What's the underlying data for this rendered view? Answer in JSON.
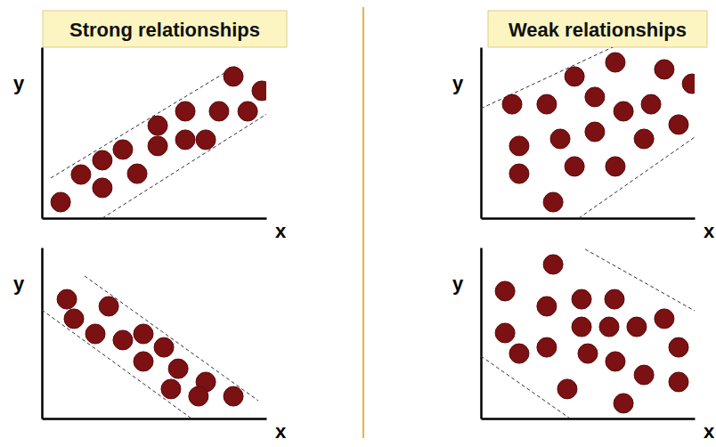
{
  "slide": {
    "headings": [
      "Strong relationships",
      "Weak relationships"
    ]
  },
  "chart_data": [
    {
      "type": "scatter",
      "x_label": "x",
      "y_label": "y",
      "xlim": [
        0,
        10.5
      ],
      "ylim": [
        0,
        8
      ],
      "tick_labels": false,
      "color": "#7b1113",
      "marker": "circle",
      "x": [
        0.88,
        1.83,
        2.83,
        2.83,
        3.79,
        4.46,
        5.42,
        5.42,
        6.71,
        6.71,
        7.67,
        8.29,
        8.96,
        9.63,
        10.29
      ],
      "y": [
        0.75,
        2.04,
        2.71,
        1.42,
        3.21,
        2.08,
        4.33,
        3.38,
        5.0,
        3.67,
        3.67,
        5.0,
        6.63,
        5.0,
        5.96
      ],
      "band_lines": [
        {
          "x": [
            0.42,
            9.17
          ],
          "y": [
            1.88,
            7.17
          ]
        },
        {
          "x": [
            2.83,
            10.5
          ],
          "y": [
            0,
            4.86
          ]
        }
      ]
    },
    {
      "type": "scatter",
      "x_label": "x",
      "y_label": "y",
      "xlim": [
        0,
        10.5
      ],
      "ylim": [
        0,
        8
      ],
      "tick_labels": false,
      "color": "#7b1113",
      "marker": "circle",
      "x": [
        1.17,
        1.5,
        3.13,
        2.5,
        3.79,
        4.75,
        4.75,
        5.71,
        6.38,
        6.04,
        7.67,
        7.33,
        8.96
      ],
      "y": [
        5.58,
        4.67,
        5.25,
        3.96,
        3.67,
        3.96,
        2.67,
        3.33,
        2.33,
        1.38,
        1.71,
        1.04,
        1.04
      ],
      "band_lines": [
        {
          "x": [
            2.0,
            10.13
          ],
          "y": [
            6.67,
            0.83
          ]
        },
        {
          "x": [
            0,
            7.0
          ],
          "y": [
            5.08,
            0
          ]
        }
      ]
    },
    {
      "type": "scatter",
      "x_label": "x",
      "y_label": "y",
      "xlim": [
        0,
        10
      ],
      "ylim": [
        0,
        8
      ],
      "tick_labels": false,
      "color": "#7b1113",
      "marker": "circle",
      "x": [
        1.46,
        3.08,
        4.38,
        6.29,
        5.33,
        6.67,
        7.96,
        8.58,
        9.88,
        1.79,
        3.71,
        5.33,
        7.63,
        9.25,
        1.79,
        4.38,
        6.29,
        3.38
      ],
      "y": [
        5.33,
        5.33,
        6.63,
        7.29,
        5.67,
        5.0,
        5.33,
        6.96,
        6.29,
        3.38,
        3.71,
        4.04,
        3.71,
        4.38,
        2.08,
        2.42,
        2.42,
        0.75
      ],
      "band_lines": [
        {
          "x": [
            0,
            6.25
          ],
          "y": [
            5.13,
            8.04
          ]
        },
        {
          "x": [
            4.58,
            10
          ],
          "y": [
            0,
            3.79
          ]
        }
      ]
    },
    {
      "type": "scatter",
      "x_label": "x",
      "y_label": "y",
      "xlim": [
        0,
        10
      ],
      "ylim": [
        0,
        8
      ],
      "tick_labels": false,
      "color": "#7b1113",
      "marker": "circle",
      "x": [
        1.13,
        3.38,
        1.13,
        1.79,
        3.08,
        4.71,
        3.08,
        4.71,
        6.25,
        6.0,
        7.29,
        8.58,
        5.0,
        6.29,
        7.63,
        9.25,
        9.25,
        4.04,
        6.67
      ],
      "y": [
        5.96,
        7.21,
        4.0,
        3.04,
        3.33,
        5.58,
        5.25,
        4.29,
        5.58,
        4.29,
        4.29,
        4.67,
        3.04,
        2.67,
        2.04,
        3.33,
        1.71,
        1.38,
        0.71
      ],
      "band_lines": [
        {
          "x": [
            4.88,
            10
          ],
          "y": [
            7.92,
            5.04
          ]
        },
        {
          "x": [
            0,
            4.17
          ],
          "y": [
            2.92,
            0
          ]
        }
      ]
    }
  ]
}
